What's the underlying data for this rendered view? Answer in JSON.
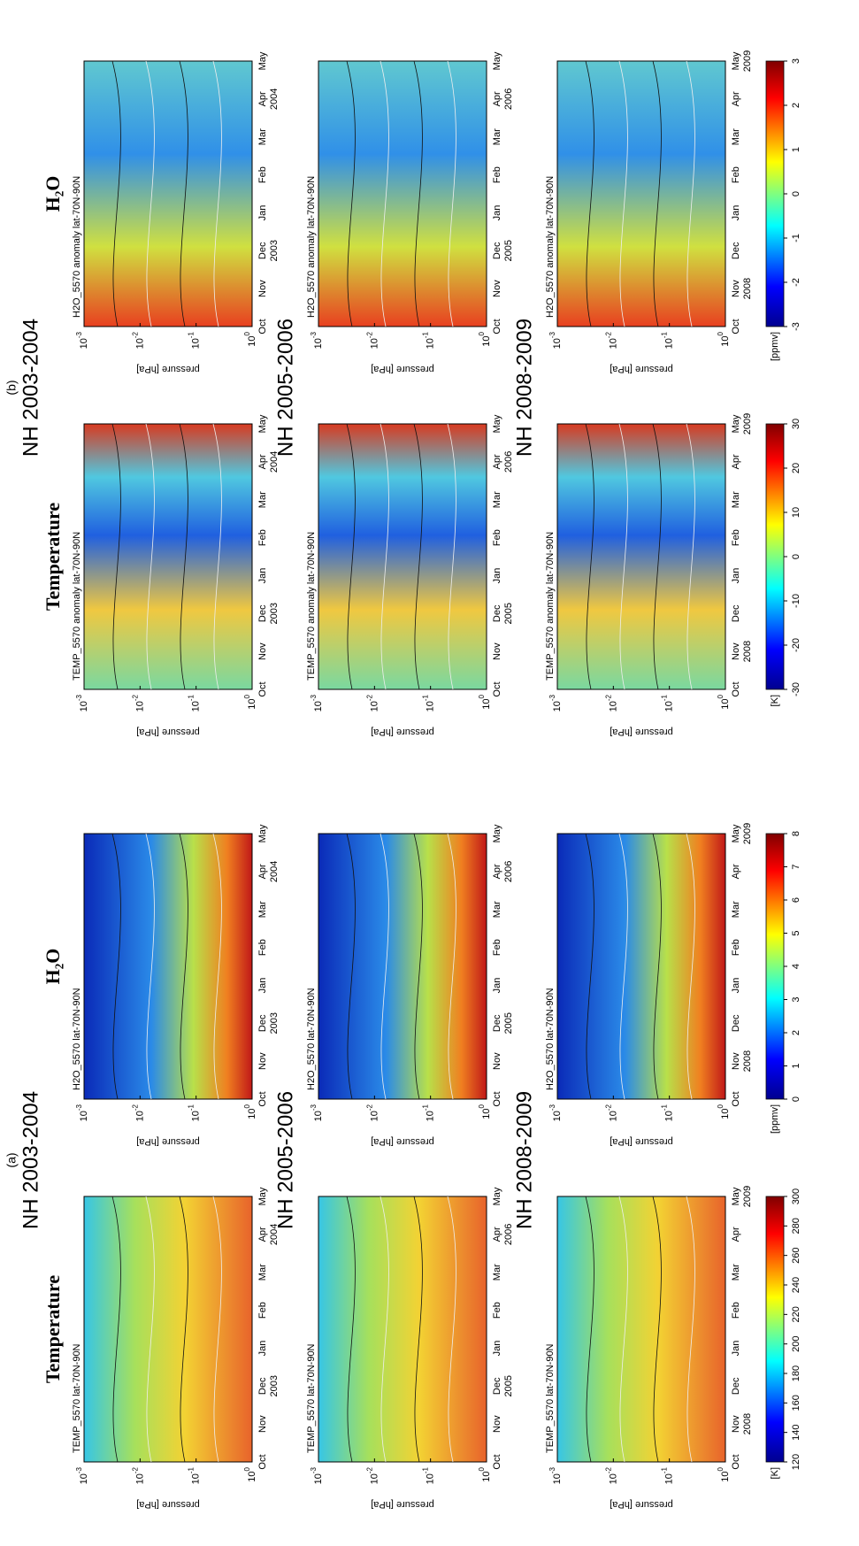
{
  "pressure_label": "pressure [hPa]",
  "pressure_ticks": [
    {
      "base": "10",
      "exp": "-3"
    },
    {
      "base": "10",
      "exp": "-2"
    },
    {
      "base": "10",
      "exp": "-1"
    },
    {
      "base": "10",
      "exp": "0"
    }
  ],
  "parts": [
    {
      "label": "(a)",
      "headers": [
        "Temperature",
        "H₂O"
      ],
      "rows": [
        {
          "title": "NH 2003-2004",
          "plot_titles": [
            "TEMP_5570   lat-70N-90N",
            "H2O_5570   lat-70N-90N"
          ],
          "months": [
            "Oct",
            "Nov",
            "Dec",
            "Jan",
            "Feb",
            "Mar",
            "Apr",
            "May"
          ],
          "years": [
            null,
            null,
            "2003",
            null,
            null,
            null,
            "2004",
            null
          ]
        },
        {
          "title": "NH 2005-2006",
          "plot_titles": [
            "TEMP_5570   lat-70N-90N",
            "H2O_5570   lat-70N-90N"
          ],
          "months": [
            "Oct",
            "Nov",
            "Dec",
            "Jan",
            "Feb",
            "Mar",
            "Apr",
            "May"
          ],
          "years": [
            null,
            null,
            "2005",
            null,
            null,
            null,
            "2006",
            null
          ]
        },
        {
          "title": "NH 2008-2009",
          "plot_titles": [
            "TEMP_5570   lat-70N-90N",
            "H2O_5570   lat-70N-90N"
          ],
          "months": [
            "Oct",
            "Nov",
            "Dec",
            "Jan",
            "Feb",
            "Mar",
            "Apr",
            "May"
          ],
          "years": [
            null,
            "2008",
            null,
            null,
            null,
            null,
            null,
            "2009"
          ]
        }
      ],
      "colorbars": [
        {
          "unit": "[K]",
          "ticks": [
            120,
            140,
            160,
            180,
            200,
            220,
            240,
            260,
            280,
            300
          ]
        },
        {
          "unit": "[ppmv]",
          "ticks": [
            0,
            1,
            2,
            3,
            4,
            5,
            6,
            7,
            8
          ]
        }
      ]
    },
    {
      "label": "(b)",
      "headers": [
        "Temperature",
        "H₂O"
      ],
      "rows": [
        {
          "title": "NH 2003-2004",
          "plot_titles": [
            "TEMP_5570 anomaly   lat-70N-90N",
            "H2O_5570 anomaly   lat-70N-90N"
          ],
          "months": [
            "Oct",
            "Nov",
            "Dec",
            "Jan",
            "Feb",
            "Mar",
            "Apr",
            "May"
          ],
          "years": [
            null,
            null,
            "2003",
            null,
            null,
            null,
            "2004",
            null
          ]
        },
        {
          "title": "NH 2005-2006",
          "plot_titles": [
            "TEMP_5570 anomaly   lat-70N-90N",
            "H2O_5570 anomaly   lat-70N-90N"
          ],
          "months": [
            "Oct",
            "Nov",
            "Dec",
            "Jan",
            "Feb",
            "Mar",
            "Apr",
            "May"
          ],
          "years": [
            null,
            null,
            "2005",
            null,
            null,
            null,
            "2006",
            null
          ]
        },
        {
          "title": "NH 2008-2009",
          "plot_titles": [
            "TEMP_5570 anomaly   lat-70N-90N",
            "H2O_5570 anomaly   lat-70N-90N"
          ],
          "months": [
            "Oct",
            "Nov",
            "Dec",
            "Jan",
            "Feb",
            "Mar",
            "Apr",
            "May"
          ],
          "years": [
            null,
            "2008",
            null,
            null,
            null,
            null,
            null,
            "2009"
          ]
        }
      ],
      "colorbars": [
        {
          "unit": "[K]",
          "ticks": [
            -30,
            -20,
            -10,
            0,
            10,
            20,
            30
          ]
        },
        {
          "unit": "[ppmv]",
          "ticks": [
            -3,
            -2,
            -1,
            0,
            1,
            2,
            3
          ]
        }
      ]
    }
  ]
}
